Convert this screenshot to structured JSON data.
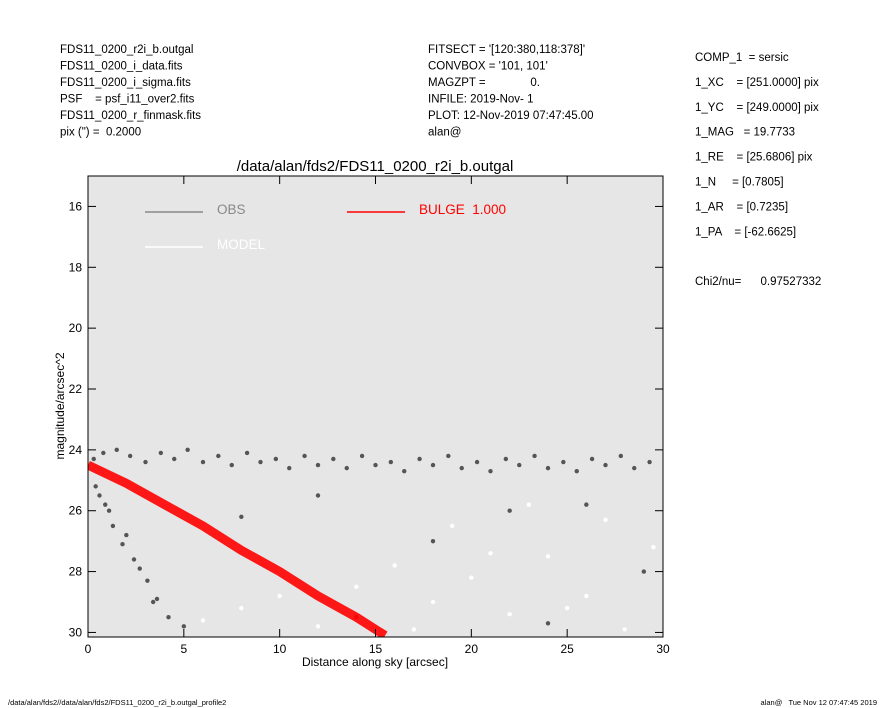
{
  "header": {
    "left": [
      "FDS11_0200_r2i_b.outgal",
      "FDS11_0200_i_data.fits",
      "FDS11_0200_i_sigma.fits",
      "PSF    = psf_i11_over2.fits",
      "FDS11_0200_r_finmask.fits",
      "pix (\") =  0.2000"
    ],
    "middle": [
      "FITSECT = '[120:380,118:378]'",
      "CONVBOX = '101, 101'",
      "MAGZPT =              0.",
      "INFILE: 2019-Nov- 1",
      "PLOT: 12-Nov-2019 07:47:45.00",
      "alan@"
    ],
    "right": [
      "COMP_1  = sersic",
      "1_XC    = [251.0000] pix",
      "1_YC    = [249.0000] pix",
      "1_MAG   = 19.7733",
      "1_RE    = [25.6806] pix",
      "1_N     = [0.7805]",
      "1_AR    = [0.7235]",
      "1_PA    = [-62.6625]"
    ],
    "chi2": "Chi2/nu=      0.97527332"
  },
  "footer": {
    "left": "/data/alan/fds2//data/alan/fds2/FDS11_0200_r2i_b.outgal_profile2",
    "right": "alan@   Tue Nov 12 07:47:45 2019"
  },
  "chart_data": {
    "type": "scatter",
    "title": "/data/alan/fds2/FDS11_0200_r2i_b.outgal",
    "x_label": "Distance along sky [arcsec]",
    "y_label": "magnitude/arcsec^2",
    "xlim": [
      0,
      30
    ],
    "ylim": [
      30.15,
      15
    ],
    "xticks": [
      0,
      5,
      10,
      15,
      20,
      25,
      30
    ],
    "yticks": [
      16,
      18,
      20,
      22,
      24,
      26,
      28,
      30
    ],
    "background": "#e6e6e6",
    "series": [
      {
        "name": "OBS",
        "type": "scatter",
        "color": "#555555",
        "x": [
          0.3,
          0.8,
          1.5,
          2.2,
          3,
          3.8,
          4.5,
          5.2,
          6,
          6.8,
          7.5,
          8.3,
          9,
          9.8,
          10.5,
          11.3,
          12,
          12.8,
          13.5,
          14.3,
          15,
          15.8,
          16.5,
          17.3,
          18,
          18.8,
          19.5,
          20.3,
          21,
          21.8,
          22.5,
          23.3,
          24,
          24.8,
          25.5,
          26.3,
          27,
          27.8,
          28.5,
          29.3,
          0.4,
          0.9,
          1.3,
          1.8,
          2.4,
          3.1,
          3.6,
          4.2,
          1.1,
          2,
          2.7,
          3.4,
          0.6,
          5,
          8,
          12,
          18,
          22,
          26,
          29,
          14,
          24
        ],
        "values": [
          24.3,
          24.1,
          24,
          24.2,
          24.4,
          24.1,
          24.3,
          24,
          24.4,
          24.2,
          24.5,
          24.1,
          24.4,
          24.3,
          24.6,
          24.2,
          24.5,
          24.3,
          24.6,
          24.2,
          24.5,
          24.4,
          24.7,
          24.3,
          24.5,
          24.2,
          24.6,
          24.4,
          24.7,
          24.3,
          24.5,
          24.2,
          24.6,
          24.4,
          24.7,
          24.3,
          24.5,
          24.2,
          24.6,
          24.4,
          25.2,
          25.8,
          26.5,
          27.1,
          27.6,
          28.3,
          28.9,
          29.5,
          26,
          26.8,
          27.9,
          29,
          25.5,
          29.8,
          26.2,
          25.5,
          27,
          26,
          25.8,
          28,
          29.5,
          29.7
        ]
      },
      {
        "name": "MODEL",
        "type": "scatter",
        "color": "#ffffff",
        "x": [
          6,
          8,
          10,
          12,
          14,
          16,
          18,
          20,
          22,
          24,
          26,
          28,
          29.5,
          19,
          23,
          27,
          17,
          21,
          25
        ],
        "values": [
          29.6,
          29.2,
          28.8,
          29.8,
          28.5,
          27.8,
          29,
          28.2,
          29.4,
          27.5,
          28.8,
          29.9,
          27.2,
          26.5,
          25.8,
          26.3,
          29.9,
          27.4,
          29.2
        ]
      },
      {
        "name": "BULGE  1.000",
        "type": "line",
        "color": "#ff0000",
        "x": [
          0,
          2,
          4,
          6,
          8,
          10,
          12,
          14,
          15.5
        ],
        "values": [
          24.5,
          25.1,
          25.8,
          26.5,
          27.3,
          28,
          28.8,
          29.5,
          30.1
        ]
      }
    ]
  }
}
